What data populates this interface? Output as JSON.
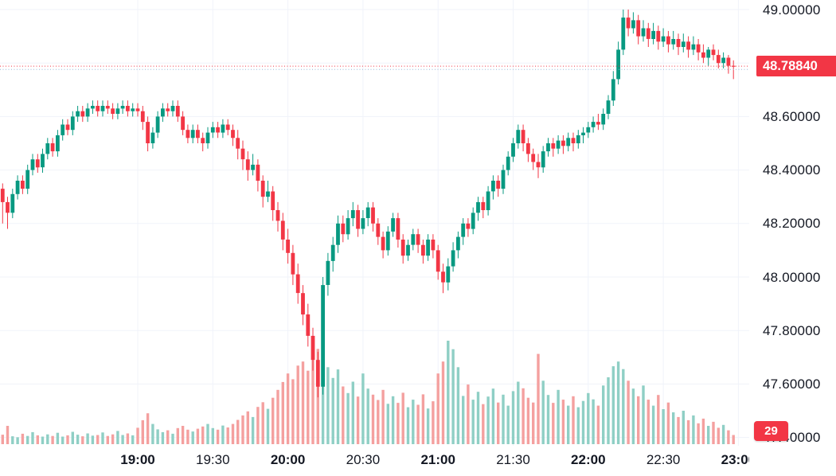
{
  "chart_data": {
    "type": "candlestick",
    "interval_minutes": 2,
    "start_time": "18:04",
    "x_axis": {
      "ticks": [
        {
          "time": "19:00",
          "bold": true
        },
        {
          "time": "19:30",
          "bold": false
        },
        {
          "time": "20:00",
          "bold": true
        },
        {
          "time": "20:30",
          "bold": false
        },
        {
          "time": "21:00",
          "bold": true
        },
        {
          "time": "21:30",
          "bold": false
        },
        {
          "time": "22:00",
          "bold": true
        },
        {
          "time": "22:30",
          "bold": false
        },
        {
          "time": "23:00",
          "bold": true
        }
      ]
    },
    "y_axis": {
      "ticks": [
        {
          "value": 49.0,
          "label": "49.00000"
        },
        {
          "value": 48.6,
          "label": "48.60000"
        },
        {
          "value": 48.4,
          "label": "48.40000"
        },
        {
          "value": 48.2,
          "label": "48.20000"
        },
        {
          "value": 48.0,
          "label": "48.00000"
        },
        {
          "value": 47.8,
          "label": "47.80000"
        },
        {
          "value": 47.6,
          "label": "47.60000"
        },
        {
          "value": 47.4,
          "label": "47.40000"
        }
      ],
      "grid_values": [
        49.0,
        48.8,
        48.6,
        48.4,
        48.2,
        48.0,
        47.8,
        47.6,
        47.4
      ],
      "range_shown": [
        47.4,
        49.0
      ]
    },
    "last_price": {
      "value": 48.7884,
      "label": "48.78840"
    },
    "last_volume": {
      "value": 29,
      "label": "29"
    },
    "secondary_price_line": {
      "value": 48.776
    },
    "legend_position": "none",
    "grid": true,
    "colors": {
      "background": "#ffffff",
      "grid": "#f0f3fa",
      "up": "#089981",
      "down": "#f23645",
      "volume_up": "#8fcfc5",
      "volume_down": "#f4a09f",
      "axis_text": "#131722",
      "badge_text": "#ffffff",
      "secondary_line": "#9cb6d6"
    },
    "candles_ohlcv": [
      [
        48.48,
        48.52,
        48.22,
        48.33,
        48
      ],
      [
        48.33,
        48.35,
        48.2,
        48.28,
        30
      ],
      [
        48.28,
        48.3,
        48.18,
        48.24,
        58
      ],
      [
        48.24,
        48.33,
        48.22,
        48.31,
        25
      ],
      [
        48.31,
        48.38,
        48.29,
        48.36,
        22
      ],
      [
        48.36,
        48.38,
        48.31,
        48.33,
        33
      ],
      [
        48.33,
        48.42,
        48.31,
        48.4,
        26
      ],
      [
        48.4,
        48.46,
        48.38,
        48.44,
        38
      ],
      [
        48.44,
        48.46,
        48.39,
        48.41,
        28
      ],
      [
        48.41,
        48.48,
        48.39,
        48.46,
        24
      ],
      [
        48.46,
        48.52,
        48.44,
        48.5,
        31
      ],
      [
        48.5,
        48.52,
        48.45,
        48.47,
        26
      ],
      [
        48.47,
        48.55,
        48.45,
        48.53,
        36
      ],
      [
        48.53,
        48.59,
        48.51,
        48.57,
        24
      ],
      [
        48.57,
        48.59,
        48.53,
        48.55,
        28
      ],
      [
        48.55,
        48.62,
        48.53,
        48.6,
        39
      ],
      [
        48.6,
        48.64,
        48.58,
        48.62,
        30
      ],
      [
        48.62,
        48.64,
        48.58,
        48.6,
        25
      ],
      [
        48.6,
        48.65,
        48.58,
        48.63,
        34
      ],
      [
        48.63,
        48.66,
        48.61,
        48.64,
        27
      ],
      [
        48.64,
        48.66,
        48.6,
        48.62,
        29
      ],
      [
        48.62,
        48.66,
        48.6,
        48.64,
        37
      ],
      [
        48.64,
        48.66,
        48.61,
        48.63,
        26
      ],
      [
        48.63,
        48.65,
        48.59,
        48.61,
        31
      ],
      [
        48.61,
        48.65,
        48.59,
        48.63,
        42
      ],
      [
        48.63,
        48.66,
        48.61,
        48.64,
        29
      ],
      [
        48.64,
        48.66,
        48.6,
        48.62,
        34
      ],
      [
        48.62,
        48.65,
        48.6,
        48.63,
        28
      ],
      [
        48.63,
        48.65,
        48.6,
        48.62,
        52
      ],
      [
        48.62,
        48.64,
        48.55,
        48.58,
        76
      ],
      [
        48.58,
        48.6,
        48.47,
        48.5,
        98
      ],
      [
        48.5,
        48.56,
        48.48,
        48.54,
        64
      ],
      [
        48.54,
        48.62,
        48.52,
        48.6,
        47
      ],
      [
        48.6,
        48.65,
        48.58,
        48.63,
        38
      ],
      [
        48.63,
        48.65,
        48.6,
        48.62,
        44
      ],
      [
        48.62,
        48.66,
        48.6,
        48.64,
        33
      ],
      [
        48.64,
        48.66,
        48.58,
        48.6,
        51
      ],
      [
        48.6,
        48.62,
        48.53,
        48.55,
        58
      ],
      [
        48.55,
        48.57,
        48.5,
        48.52,
        46
      ],
      [
        48.52,
        48.57,
        48.5,
        48.55,
        40
      ],
      [
        48.55,
        48.57,
        48.5,
        48.52,
        49
      ],
      [
        48.52,
        48.54,
        48.47,
        48.5,
        56
      ],
      [
        48.5,
        48.56,
        48.48,
        48.54,
        64
      ],
      [
        48.54,
        48.58,
        48.52,
        48.56,
        51
      ],
      [
        48.56,
        48.58,
        48.52,
        48.54,
        46
      ],
      [
        48.54,
        48.59,
        48.52,
        48.57,
        59
      ],
      [
        48.57,
        48.59,
        48.53,
        48.55,
        53
      ],
      [
        48.55,
        48.57,
        48.49,
        48.52,
        64
      ],
      [
        48.52,
        48.55,
        48.44,
        48.48,
        77
      ],
      [
        48.48,
        48.51,
        48.4,
        48.44,
        91
      ],
      [
        48.44,
        48.47,
        48.36,
        48.4,
        104
      ],
      [
        48.4,
        48.46,
        48.38,
        48.42,
        86
      ],
      [
        48.42,
        48.44,
        48.32,
        48.36,
        118
      ],
      [
        48.36,
        48.38,
        48.26,
        48.3,
        133
      ],
      [
        48.3,
        48.36,
        48.28,
        48.32,
        112
      ],
      [
        48.32,
        48.34,
        48.21,
        48.25,
        147
      ],
      [
        48.25,
        48.28,
        48.17,
        48.21,
        172
      ],
      [
        48.21,
        48.24,
        48.1,
        48.14,
        197
      ],
      [
        48.14,
        48.18,
        48.05,
        48.09,
        224
      ],
      [
        48.09,
        48.12,
        47.97,
        48.01,
        206
      ],
      [
        48.01,
        48.05,
        47.9,
        47.94,
        249
      ],
      [
        47.94,
        47.97,
        47.82,
        47.86,
        262
      ],
      [
        47.86,
        47.9,
        47.74,
        47.78,
        233
      ],
      [
        47.78,
        47.81,
        47.65,
        47.69,
        278
      ],
      [
        47.69,
        47.72,
        47.55,
        47.59,
        302
      ],
      [
        47.59,
        48.0,
        47.56,
        47.97,
        286
      ],
      [
        47.97,
        48.09,
        47.93,
        48.06,
        244
      ],
      [
        48.06,
        48.15,
        48.02,
        48.12,
        210
      ],
      [
        48.12,
        48.23,
        48.09,
        48.2,
        237
      ],
      [
        48.2,
        48.23,
        48.13,
        48.16,
        183
      ],
      [
        48.16,
        48.25,
        48.14,
        48.22,
        162
      ],
      [
        48.22,
        48.28,
        48.19,
        48.25,
        198
      ],
      [
        48.25,
        48.27,
        48.15,
        48.18,
        151
      ],
      [
        48.18,
        48.25,
        48.16,
        48.22,
        224
      ],
      [
        48.22,
        48.28,
        48.19,
        48.26,
        176
      ],
      [
        48.26,
        48.28,
        48.17,
        48.2,
        157
      ],
      [
        48.2,
        48.22,
        48.12,
        48.15,
        140
      ],
      [
        48.15,
        48.17,
        48.07,
        48.1,
        172
      ],
      [
        48.1,
        48.19,
        48.08,
        48.17,
        128
      ],
      [
        48.17,
        48.24,
        48.15,
        48.22,
        152
      ],
      [
        48.22,
        48.24,
        48.11,
        48.14,
        131
      ],
      [
        48.14,
        48.16,
        48.05,
        48.08,
        163
      ],
      [
        48.08,
        48.14,
        48.06,
        48.12,
        117
      ],
      [
        48.12,
        48.18,
        48.1,
        48.16,
        141
      ],
      [
        48.16,
        48.18,
        48.09,
        48.12,
        125
      ],
      [
        48.12,
        48.14,
        48.05,
        48.08,
        158
      ],
      [
        48.08,
        48.16,
        48.06,
        48.14,
        113
      ],
      [
        48.14,
        48.16,
        48.07,
        48.1,
        136
      ],
      [
        48.1,
        48.12,
        47.99,
        48.02,
        224
      ],
      [
        48.02,
        48.05,
        47.94,
        47.98,
        262
      ],
      [
        47.98,
        48.07,
        47.95,
        48.04,
        328
      ],
      [
        48.04,
        48.13,
        48.02,
        48.1,
        301
      ],
      [
        48.1,
        48.17,
        48.07,
        48.15,
        244
      ],
      [
        48.15,
        48.22,
        48.12,
        48.2,
        153
      ],
      [
        48.2,
        48.22,
        48.15,
        48.18,
        189
      ],
      [
        48.18,
        48.26,
        48.16,
        48.24,
        141
      ],
      [
        48.24,
        48.3,
        48.21,
        48.28,
        166
      ],
      [
        48.28,
        48.3,
        48.22,
        48.25,
        127
      ],
      [
        48.25,
        48.34,
        48.23,
        48.32,
        151
      ],
      [
        48.32,
        48.38,
        48.29,
        48.36,
        176
      ],
      [
        48.36,
        48.38,
        48.3,
        48.33,
        132
      ],
      [
        48.33,
        48.42,
        48.31,
        48.4,
        157
      ],
      [
        48.4,
        48.47,
        48.38,
        48.45,
        122
      ],
      [
        48.45,
        48.52,
        48.43,
        48.5,
        168
      ],
      [
        48.5,
        48.57,
        48.48,
        48.55,
        198
      ],
      [
        48.55,
        48.57,
        48.47,
        48.5,
        177
      ],
      [
        48.5,
        48.52,
        48.43,
        48.46,
        147
      ],
      [
        48.46,
        48.48,
        48.4,
        48.43,
        132
      ],
      [
        48.43,
        48.46,
        48.37,
        48.41,
        286
      ],
      [
        48.41,
        48.49,
        48.39,
        48.47,
        201
      ],
      [
        48.47,
        48.52,
        48.45,
        48.5,
        156
      ],
      [
        48.5,
        48.52,
        48.45,
        48.48,
        131
      ],
      [
        48.48,
        48.53,
        48.46,
        48.51,
        172
      ],
      [
        48.51,
        48.53,
        48.46,
        48.49,
        141
      ],
      [
        48.49,
        48.54,
        48.47,
        48.52,
        122
      ],
      [
        48.52,
        48.54,
        48.47,
        48.5,
        152
      ],
      [
        48.5,
        48.55,
        48.48,
        48.53,
        117
      ],
      [
        48.53,
        48.56,
        48.5,
        48.54,
        137
      ],
      [
        48.54,
        48.58,
        48.52,
        48.56,
        162
      ],
      [
        48.56,
        48.6,
        48.54,
        48.58,
        142
      ],
      [
        48.58,
        48.61,
        48.55,
        48.57,
        122
      ],
      [
        48.57,
        48.63,
        48.55,
        48.61,
        186
      ],
      [
        48.61,
        48.68,
        48.59,
        48.66,
        212
      ],
      [
        48.66,
        48.77,
        48.64,
        48.74,
        247
      ],
      [
        48.74,
        48.88,
        48.72,
        48.85,
        262
      ],
      [
        48.85,
        49.0,
        48.83,
        48.97,
        238
      ],
      [
        48.97,
        49.0,
        48.9,
        48.93,
        201
      ],
      [
        48.93,
        48.99,
        48.91,
        48.96,
        176
      ],
      [
        48.96,
        48.98,
        48.87,
        48.9,
        152
      ],
      [
        48.9,
        48.96,
        48.88,
        48.93,
        186
      ],
      [
        48.93,
        48.95,
        48.86,
        48.89,
        141
      ],
      [
        48.89,
        48.95,
        48.87,
        48.92,
        122
      ],
      [
        48.92,
        48.94,
        48.85,
        48.88,
        156
      ],
      [
        48.88,
        48.93,
        48.86,
        48.9,
        111
      ],
      [
        48.9,
        48.92,
        48.84,
        48.87,
        132
      ],
      [
        48.87,
        48.92,
        48.85,
        48.89,
        101
      ],
      [
        48.89,
        48.91,
        48.83,
        48.86,
        86
      ],
      [
        48.86,
        48.91,
        48.84,
        48.88,
        106
      ],
      [
        48.88,
        48.9,
        48.82,
        48.85,
        76
      ],
      [
        48.85,
        48.9,
        48.83,
        48.87,
        91
      ],
      [
        48.87,
        48.89,
        48.81,
        48.84,
        66
      ],
      [
        48.84,
        48.87,
        48.8,
        48.82,
        81
      ],
      [
        48.82,
        48.86,
        48.79,
        48.85,
        58
      ],
      [
        48.85,
        48.87,
        48.81,
        48.83,
        71
      ],
      [
        48.83,
        48.85,
        48.78,
        48.8,
        52
      ],
      [
        48.8,
        48.84,
        48.78,
        48.82,
        61
      ],
      [
        48.82,
        48.83,
        48.76,
        48.79,
        44
      ],
      [
        48.79,
        48.81,
        48.74,
        48.7884,
        29
      ]
    ]
  }
}
